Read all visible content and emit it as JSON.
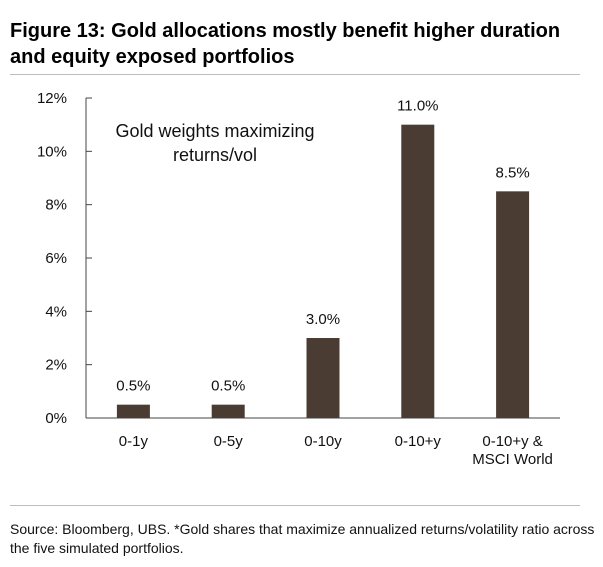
{
  "title": "Figure 13: Gold allocations mostly benefit higher duration and equity exposed portfolios",
  "source": "Source: Bloomberg, UBS. *Gold shares that maximize annualized returns/volatility ratio across the five simulated portfolios.",
  "colors": {
    "bar": "#4a3c33",
    "axis": "#444444",
    "rule": "#bdbdbd"
  },
  "chart_data": {
    "type": "bar",
    "categories": [
      [
        "0-1y"
      ],
      [
        "0-5y"
      ],
      [
        "0-10y"
      ],
      [
        "0-10+y"
      ],
      [
        "0-10+y &",
        "MSCI World"
      ]
    ],
    "values": [
      0.5,
      0.5,
      3.0,
      11.0,
      8.5
    ],
    "data_labels": [
      "0.5%",
      "0.5%",
      "3.0%",
      "11.0%",
      "8.5%"
    ],
    "y_ticks": [
      0,
      2,
      4,
      6,
      8,
      10,
      12
    ],
    "y_tick_labels": [
      "0%",
      "2%",
      "4%",
      "6%",
      "8%",
      "10%",
      "12%"
    ],
    "ylim": [
      0,
      12
    ],
    "annotation": [
      "Gold weights maximizing",
      "returns/vol"
    ],
    "xlabel": "",
    "ylabel": "",
    "grid": false,
    "legend": "none"
  }
}
